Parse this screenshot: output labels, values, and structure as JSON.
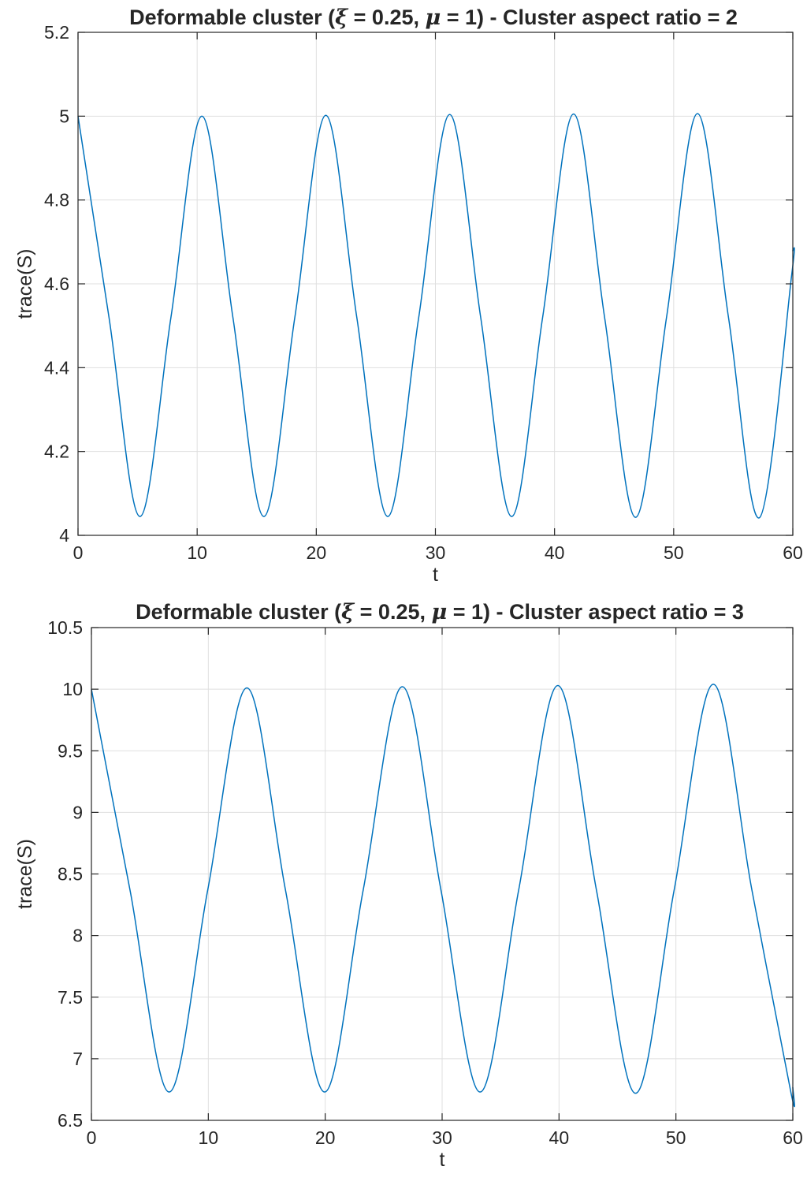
{
  "chart_data": [
    {
      "type": "line",
      "title_prefix": "Deformable cluster (",
      "title_xi_symbol": "ξ",
      "title_mid": " = 0.25, ",
      "title_mu_symbol": "μ",
      "title_suffix": " = 1) - Cluster aspect ratio = 2",
      "xlabel": "t",
      "ylabel": "trace(S)",
      "xlim": [
        0,
        60
      ],
      "ylim": [
        4,
        5.2
      ],
      "x_ticks": [
        0,
        10,
        20,
        30,
        40,
        50,
        60
      ],
      "x_tick_labels": [
        "0",
        "10",
        "20",
        "30",
        "40",
        "50",
        "60"
      ],
      "y_ticks": [
        4,
        4.2,
        4.4,
        4.6,
        4.8,
        5,
        5.2
      ],
      "y_tick_labels": [
        "4",
        "4.2",
        "4.4",
        "4.6",
        "4.8",
        "5",
        "5.2"
      ],
      "grid": true,
      "line_color": "#0072bd",
      "series": [
        {
          "x": [
            0,
            2.6,
            5.2,
            7.8,
            10.4,
            13.0,
            15.6,
            18.2,
            20.8,
            23.4,
            26.0,
            28.6,
            31.2,
            33.8,
            36.4,
            39.0,
            41.6,
            44.2,
            46.8,
            49.4,
            52.0,
            54.6,
            57.2,
            59.9,
            60
          ],
          "y": [
            5.0,
            4.52,
            4.045,
            4.52,
            5.0,
            4.52,
            4.045,
            4.52,
            5.002,
            4.52,
            4.045,
            4.52,
            5.004,
            4.52,
            4.045,
            4.52,
            5.005,
            4.52,
            4.043,
            4.52,
            5.006,
            4.52,
            4.042,
            4.62,
            4.68
          ]
        }
      ]
    },
    {
      "type": "line",
      "title_prefix": "Deformable cluster (",
      "title_xi_symbol": "ξ",
      "title_mid": " = 0.25, ",
      "title_mu_symbol": "μ",
      "title_suffix": " = 1) - Cluster aspect ratio = 3",
      "xlabel": "t",
      "ylabel": "trace(S)",
      "xlim": [
        0,
        60
      ],
      "ylim": [
        6.5,
        10.5
      ],
      "x_ticks": [
        0,
        10,
        20,
        30,
        40,
        50,
        60
      ],
      "x_tick_labels": [
        "0",
        "10",
        "20",
        "30",
        "40",
        "50",
        "60"
      ],
      "y_ticks": [
        6.5,
        7,
        7.5,
        8,
        8.5,
        9,
        9.5,
        10,
        10.5
      ],
      "y_tick_labels": [
        "6.5",
        "7",
        "7.5",
        "8",
        "8.5",
        "9",
        "9.5",
        "10",
        "10.5"
      ],
      "grid": true,
      "line_color": "#0072bd",
      "series": [
        {
          "x": [
            0,
            3.3,
            6.65,
            9.95,
            13.3,
            16.6,
            19.95,
            23.25,
            26.6,
            29.9,
            33.25,
            36.55,
            39.9,
            43.2,
            46.55,
            49.85,
            53.2,
            56.5,
            59.85,
            60
          ],
          "y": [
            10.0,
            8.37,
            6.73,
            8.37,
            10.01,
            8.37,
            6.73,
            8.37,
            10.02,
            8.37,
            6.73,
            8.37,
            10.03,
            8.37,
            6.72,
            8.37,
            10.04,
            8.37,
            6.72,
            6.77
          ]
        }
      ]
    }
  ]
}
